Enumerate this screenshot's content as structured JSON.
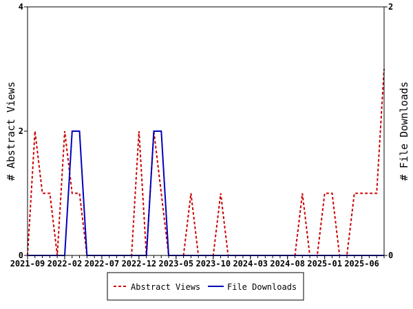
{
  "chart_data": {
    "type": "line",
    "title": "",
    "xlabel": "",
    "ylabel": "# Abstract Views",
    "y2label": "# File Downloads",
    "ylim": [
      0,
      4
    ],
    "y2lim": [
      0,
      2
    ],
    "yticks": [
      "0",
      "2",
      "4"
    ],
    "y2ticks": [
      "0",
      "2"
    ],
    "x_start": "2021-09",
    "x_tick_labels": [
      "2021-09",
      "2022-02",
      "2022-07",
      "2022-12",
      "2023-05",
      "2023-10",
      "2024-03",
      "2024-08",
      "2025-01",
      "2025-06"
    ],
    "legend_position": "bottom",
    "series": [
      {
        "name": "Abstract Views",
        "axis": "left",
        "color": "#cc0000",
        "style": "dashed",
        "values": [
          0,
          2,
          1,
          1,
          0,
          2,
          1,
          1,
          0,
          0,
          0,
          0,
          0,
          0,
          0,
          2,
          0,
          2,
          1,
          0,
          0,
          0,
          1,
          0,
          0,
          0,
          1,
          0,
          0,
          0,
          0,
          0,
          0,
          0,
          0,
          0,
          0,
          1,
          0,
          0,
          1,
          1,
          0,
          0,
          1,
          1,
          1,
          1,
          3
        ]
      },
      {
        "name": "File Downloads",
        "axis": "right",
        "color": "#0000bb",
        "style": "solid",
        "values": [
          0,
          0,
          0,
          0,
          0,
          0,
          1,
          1,
          0,
          0,
          0,
          0,
          0,
          0,
          0,
          0,
          0,
          1,
          1,
          0,
          0,
          0,
          0,
          0,
          0,
          0,
          0,
          0,
          0,
          0,
          0,
          0,
          0,
          0,
          0,
          0,
          0,
          0,
          0,
          0,
          0,
          0,
          0,
          0,
          0,
          0,
          0,
          0,
          0
        ]
      }
    ]
  }
}
